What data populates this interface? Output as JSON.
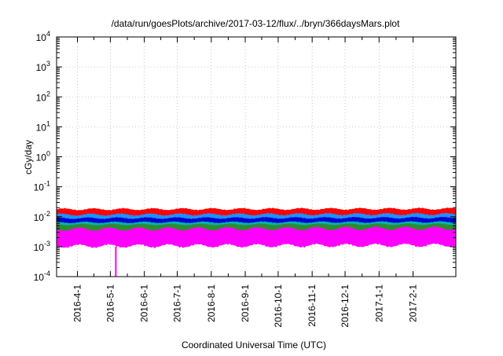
{
  "chart_data": {
    "type": "line",
    "title": "/data/run/goesPlots/archive/2017-03-12/flux/../bryn/366daysMars.plot",
    "xlabel": "Coordinated Universal Time (UTC)",
    "ylabel": "cGy/day",
    "yscale": "log",
    "ylim": [
      0.0001,
      10000
    ],
    "ytick_exponents": [
      4,
      3,
      2,
      1,
      0,
      -1,
      -2,
      -3,
      -4
    ],
    "ytick_base": "10",
    "xlim": [
      "2016-03-13",
      "2017-03-12"
    ],
    "xtick_labels": [
      "2016-4-1",
      "2016-5-1",
      "2016-6-1",
      "2016-7-1",
      "2016-8-1",
      "2016-9-1",
      "2016-10-1",
      "2016-11-1",
      "2016-12-1",
      "2017-1-1",
      "2017-2-1"
    ],
    "xtick_dates": [
      "2016-04-01",
      "2016-05-01",
      "2016-06-01",
      "2016-07-01",
      "2016-08-01",
      "2016-09-01",
      "2016-10-01",
      "2016-11-01",
      "2016-12-01",
      "2017-01-01",
      "2017-02-01"
    ],
    "grid": true,
    "legend": "none",
    "series": [
      {
        "color": "#ff0000",
        "band": [
          0.008,
          0.018
        ]
      },
      {
        "color": "#1e90ff",
        "band": [
          0.005,
          0.012
        ]
      },
      {
        "color": "#0000cd",
        "band": [
          0.0045,
          0.009
        ]
      },
      {
        "color": "#00b3b3",
        "band": [
          0.0035,
          0.0065
        ]
      },
      {
        "color": "#2e8b2e",
        "band": [
          0.003,
          0.0055
        ]
      },
      {
        "color": "#ff00ff",
        "band": [
          0.001,
          0.004
        ]
      }
    ],
    "annotations": [
      {
        "type": "dropout",
        "date": "2016-05-06",
        "min": 0.0001,
        "color": "#ff00ff"
      }
    ]
  }
}
